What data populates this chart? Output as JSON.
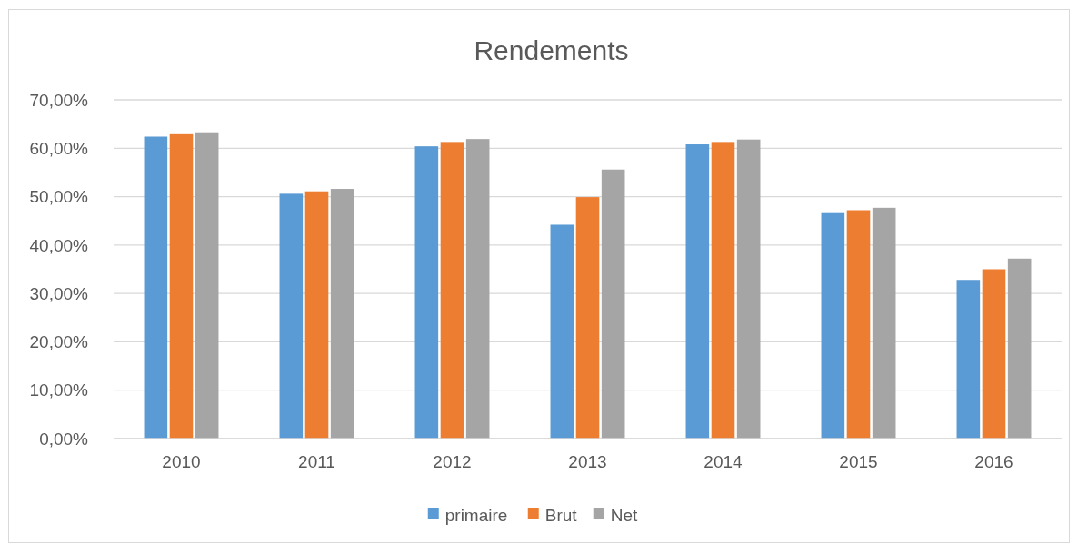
{
  "chart_data": {
    "type": "bar",
    "title": "Rendements",
    "categories": [
      "2010",
      "2011",
      "2012",
      "2013",
      "2014",
      "2015",
      "2016"
    ],
    "series": [
      {
        "name": "primaire",
        "color": "#5b9bd5",
        "values": [
          62.4,
          50.6,
          60.4,
          44.2,
          60.8,
          46.6,
          32.8
        ]
      },
      {
        "name": "Brut",
        "color": "#ed7d31",
        "values": [
          62.9,
          51.1,
          61.3,
          49.9,
          61.3,
          47.2,
          35.0
        ]
      },
      {
        "name": "Net",
        "color": "#a5a5a5",
        "values": [
          63.3,
          51.6,
          61.9,
          55.6,
          61.8,
          47.7,
          37.2
        ]
      }
    ],
    "ylim": [
      0,
      70
    ],
    "yticks": [
      {
        "value": 0,
        "label": "0,00%"
      },
      {
        "value": 10,
        "label": "10,00%"
      },
      {
        "value": 20,
        "label": "20,00%"
      },
      {
        "value": 30,
        "label": "30,00%"
      },
      {
        "value": 40,
        "label": "40,00%"
      },
      {
        "value": 50,
        "label": "50,00%"
      },
      {
        "value": 60,
        "label": "60,00%"
      },
      {
        "value": 70,
        "label": "70,00%"
      }
    ],
    "grid": "y",
    "legend": "bottom"
  }
}
